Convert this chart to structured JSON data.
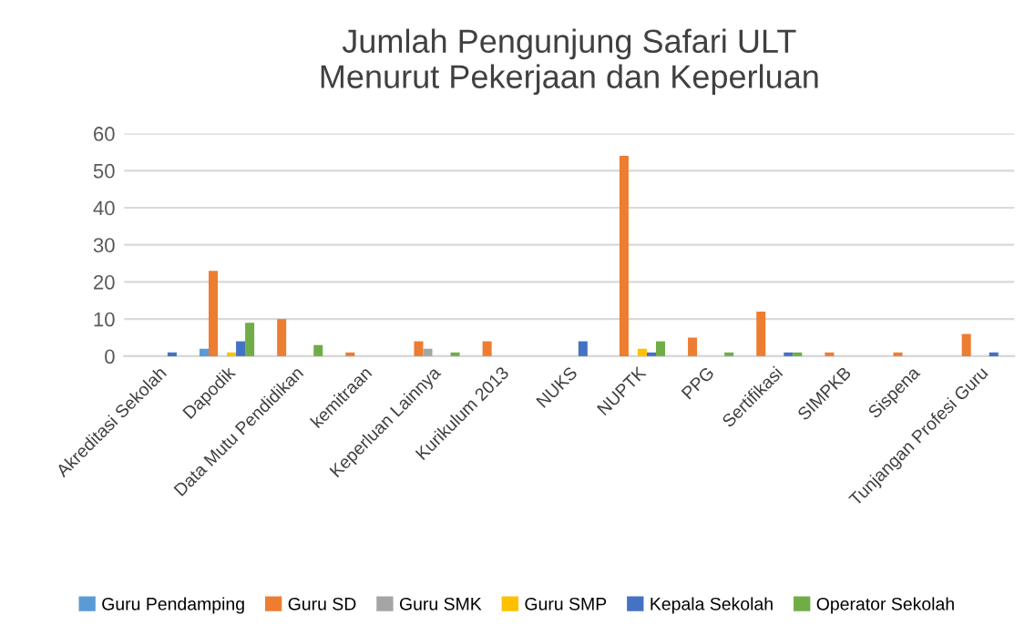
{
  "chart_data": {
    "type": "bar",
    "title": "Jumlah Pengunjung Safari ULT\nMenurut Pekerjaan dan Keperluan",
    "categories": [
      "Akreditasi Sekolah",
      "Dapodik",
      "Data Mutu Pendidikan",
      "kemitraan",
      "Keperluan Lainnya",
      "Kurikulum 2013",
      "NUKS",
      "NUPTK",
      "PPG",
      "Sertifikasi",
      "SIMPKB",
      "Sispena",
      "Tunjangan Profesi Guru"
    ],
    "series": [
      {
        "name": "Guru Pendamping",
        "color": "#5b9bd5",
        "values": [
          null,
          2,
          null,
          null,
          null,
          null,
          null,
          null,
          null,
          null,
          null,
          null,
          null
        ]
      },
      {
        "name": "Guru SD",
        "color": "#ed7d31",
        "values": [
          null,
          23,
          10,
          1,
          4,
          4,
          null,
          54,
          5,
          12,
          1,
          1,
          6
        ]
      },
      {
        "name": "Guru SMK",
        "color": "#a5a5a5",
        "values": [
          null,
          null,
          null,
          null,
          2,
          null,
          null,
          null,
          null,
          null,
          null,
          null,
          null
        ]
      },
      {
        "name": "Guru SMP",
        "color": "#ffc000",
        "values": [
          null,
          1,
          null,
          null,
          null,
          null,
          null,
          2,
          null,
          null,
          null,
          null,
          null
        ]
      },
      {
        "name": "Kepala Sekolah",
        "color": "#4472c4",
        "values": [
          1,
          4,
          null,
          null,
          null,
          null,
          4,
          1,
          null,
          1,
          null,
          null,
          1
        ]
      },
      {
        "name": "Operator Sekolah",
        "color": "#70ad47",
        "values": [
          null,
          9,
          3,
          null,
          1,
          null,
          null,
          4,
          1,
          1,
          null,
          null,
          null
        ]
      }
    ],
    "ylim": [
      0,
      60
    ],
    "yticks": [
      0,
      10,
      20,
      30,
      40,
      50,
      60
    ],
    "grid": "y",
    "legend": "bottom"
  }
}
